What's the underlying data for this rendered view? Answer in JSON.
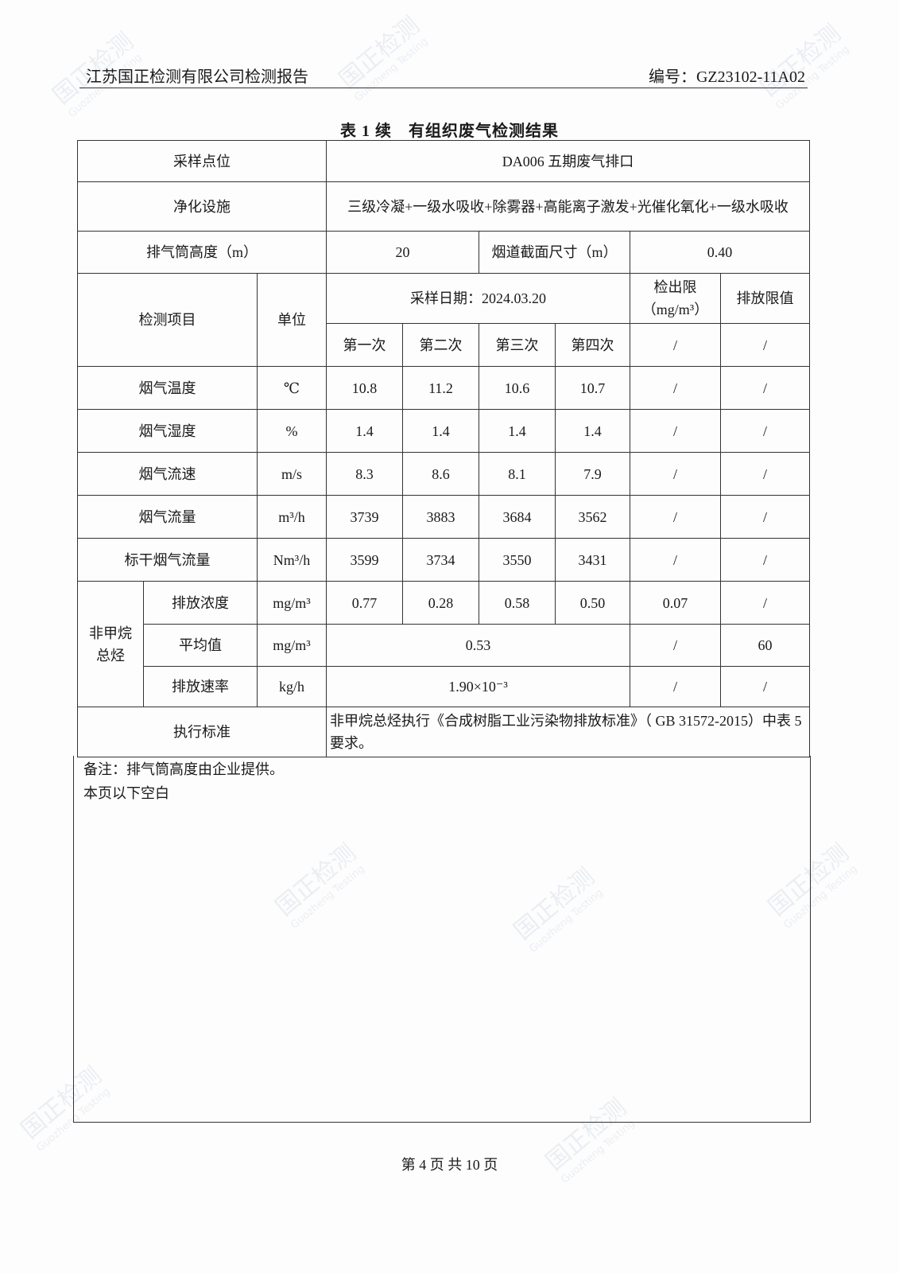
{
  "header": {
    "company": "江苏国正检测有限公司检测报告",
    "report_no": "编号：GZ23102-11A02"
  },
  "title": "表 1 续　有组织废气检测结果",
  "watermark": {
    "cn": "国正检测",
    "en": "Guozheng Testing"
  },
  "table": {
    "sampling_point_label": "采样点位",
    "sampling_point": "DA006 五期废气排口",
    "purification_label": "净化设施",
    "purification": "三级冷凝+一级水吸收+除雾器+高能离子激发+光催化氧化+一级水吸收",
    "stack_height_label": "排气筒高度（m）",
    "stack_height": "20",
    "flue_size_label": "烟道截面尺寸（m）",
    "flue_size": "0.40",
    "item_label": "检测项目",
    "unit_label": "单位",
    "sampling_date": "采样日期：2024.03.20",
    "detection_limit_label": "检出限",
    "detection_limit_unit": "（mg/m³）",
    "emission_limit_label": "排放限值",
    "rounds": [
      "第一次",
      "第二次",
      "第三次",
      "第四次"
    ],
    "slash": "/",
    "rows": [
      {
        "item": "烟气温度",
        "unit": "℃",
        "values": [
          "10.8",
          "11.2",
          "10.6",
          "10.7"
        ],
        "limit": "/",
        "std": "/"
      },
      {
        "item": "烟气湿度",
        "unit": "%",
        "values": [
          "1.4",
          "1.4",
          "1.4",
          "1.4"
        ],
        "limit": "/",
        "std": "/"
      },
      {
        "item": "烟气流速",
        "unit": "m/s",
        "values": [
          "8.3",
          "8.6",
          "8.1",
          "7.9"
        ],
        "limit": "/",
        "std": "/"
      },
      {
        "item": "烟气流量",
        "unit": "m³/h",
        "values": [
          "3739",
          "3883",
          "3684",
          "3562"
        ],
        "limit": "/",
        "std": "/"
      },
      {
        "item": "标干烟气流量",
        "unit": "Nm³/h",
        "values": [
          "3599",
          "3734",
          "3550",
          "3431"
        ],
        "limit": "/",
        "std": "/"
      }
    ],
    "nmhc": {
      "group": "非甲烷总烃",
      "conc": {
        "item": "排放浓度",
        "unit": "mg/m³",
        "values": [
          "0.77",
          "0.28",
          "0.58",
          "0.50"
        ],
        "limit": "0.07",
        "std": "/"
      },
      "avg": {
        "item": "平均值",
        "unit": "mg/m³",
        "value": "0.53",
        "limit": "/",
        "std": "60"
      },
      "rate": {
        "item": "排放速率",
        "unit": "kg/h",
        "value": "1.90×10⁻³",
        "limit": "/",
        "std": "/"
      }
    },
    "standard_label": "执行标准",
    "standard": "非甲烷总烃执行《合成树脂工业污染物排放标准》（ GB 31572-2015）中表 5 要求。"
  },
  "notes": [
    "备注：排气筒高度由企业提供。",
    "本页以下空白"
  ],
  "footer": "第 4 页 共 10 页"
}
